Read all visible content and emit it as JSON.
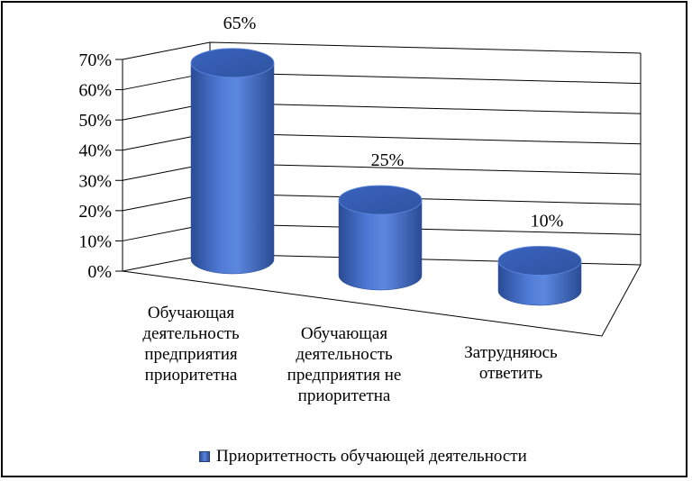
{
  "chart_data": {
    "type": "bar",
    "style": "3d-cylinder",
    "categories": [
      "Обучающая деятельность предприятия приоритетна",
      "Обучающая деятельность предприятия не приоритетна",
      "Затрудняюсь ответить"
    ],
    "category_lines": [
      [
        "Обучающая",
        "деятельность",
        "предприятия",
        "приоритетна"
      ],
      [
        "Обучающая",
        "деятельность",
        "предприятия не",
        "приоритетна"
      ],
      [
        "Затрудняюсь",
        "ответить"
      ]
    ],
    "series": [
      {
        "name": "Приоритетность обучающей деятельности",
        "values": [
          65,
          25,
          10
        ],
        "color": "#4472C4"
      }
    ],
    "data_labels": [
      "65%",
      "25%",
      "10%"
    ],
    "y_ticks": [
      "0%",
      "10%",
      "20%",
      "30%",
      "40%",
      "50%",
      "60%",
      "70%"
    ],
    "ylim": [
      0,
      70
    ],
    "grid": true,
    "legend_position": "bottom"
  }
}
